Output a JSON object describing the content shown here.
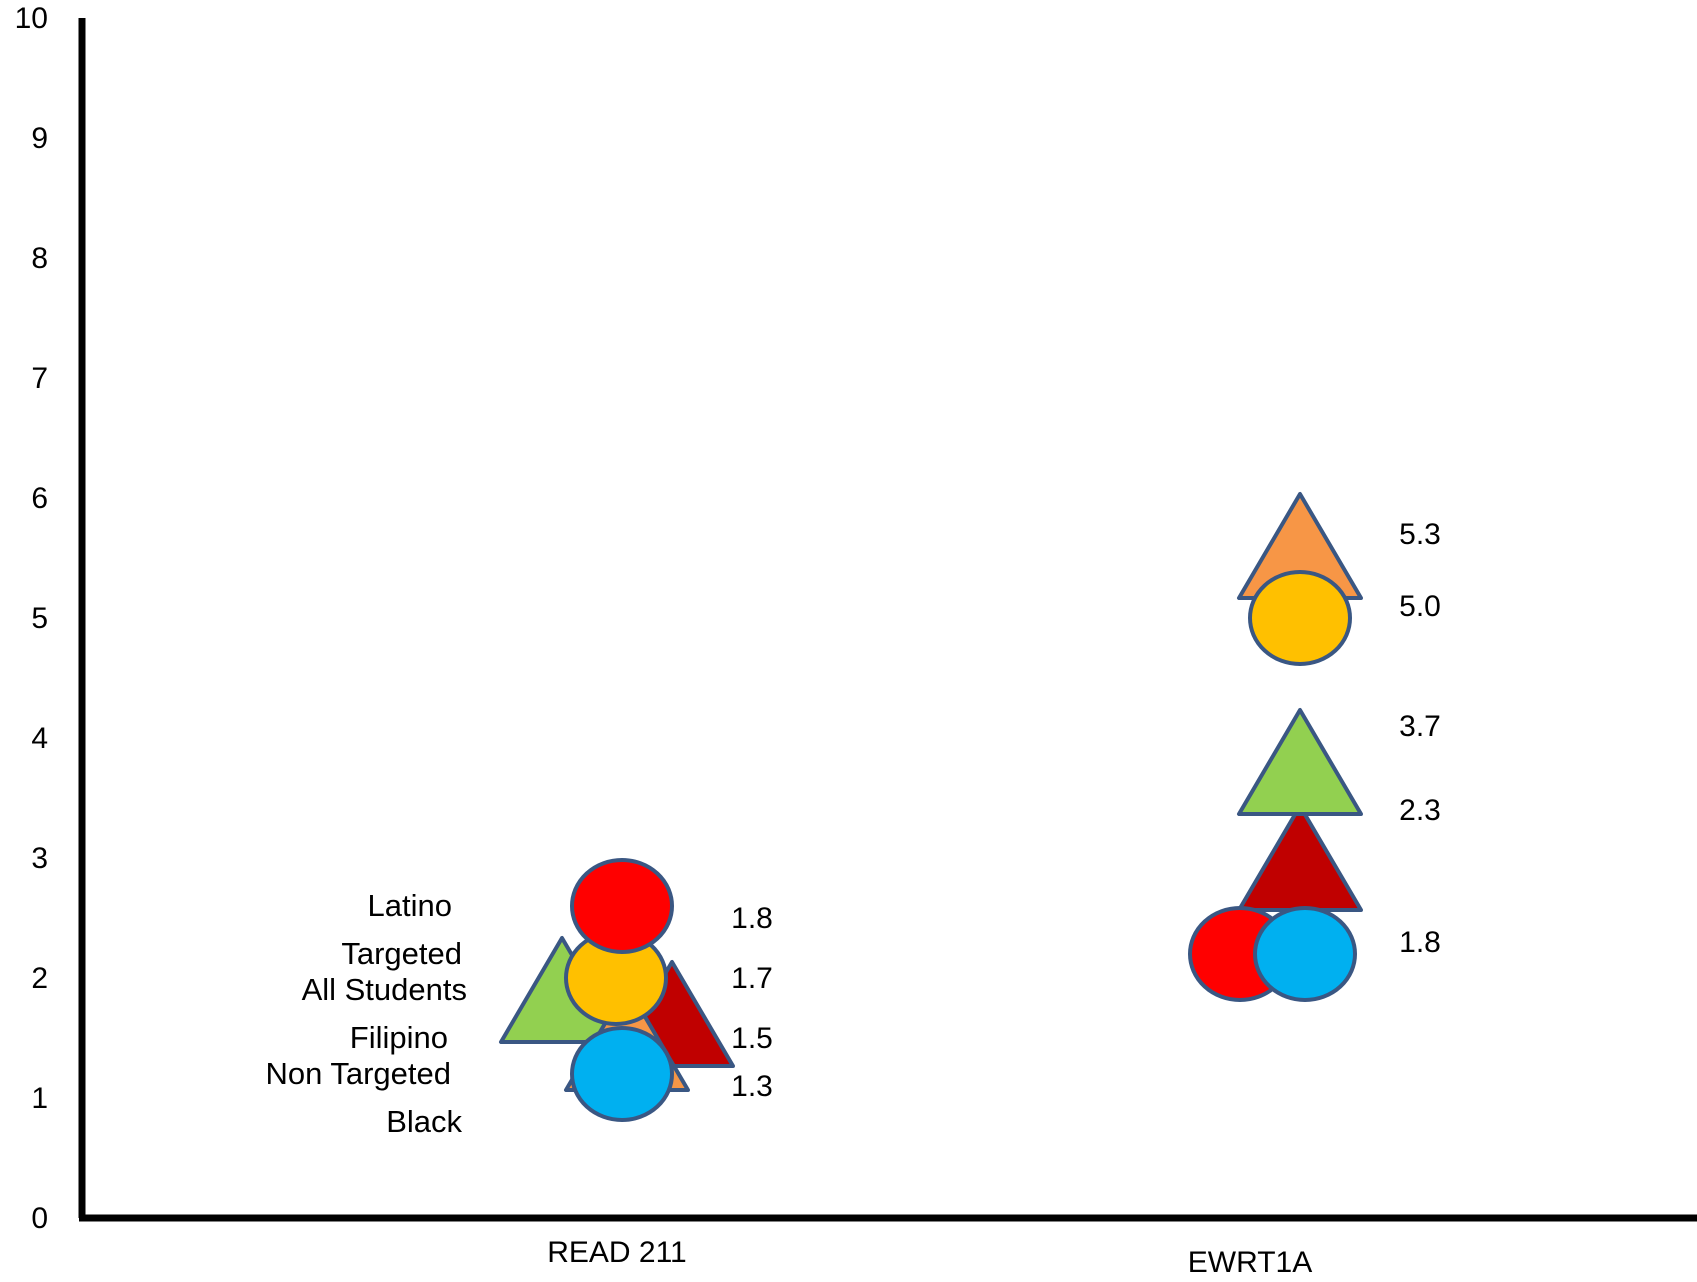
{
  "chart_data": {
    "type": "scatter",
    "categories": [
      "READ 211",
      "EWRT1A"
    ],
    "ylim": [
      0,
      10
    ],
    "yticks": [
      "0",
      "1",
      "2",
      "3",
      "4",
      "5",
      "6",
      "7",
      "8",
      "9",
      "10"
    ],
    "grid": false,
    "legend": "none",
    "marker_outline": "#3A5783",
    "series": [
      {
        "name": "Latino",
        "marker": "circle",
        "color": "#FF0000",
        "values": [
          2.6,
          2.2
        ]
      },
      {
        "name": "Targeted",
        "marker": "triangle",
        "color": "#C00000",
        "values": [
          1.7,
          3.0
        ]
      },
      {
        "name": "All Students",
        "marker": "circle",
        "color": "#FFC000",
        "values": [
          2.0,
          5.0
        ]
      },
      {
        "name": "Filipino",
        "marker": "triangle",
        "color": "#92D050",
        "values": [
          1.9,
          3.8
        ]
      },
      {
        "name": "Non Targeted",
        "marker": "triangle",
        "color": "#F79646",
        "values": [
          1.5,
          5.6
        ]
      },
      {
        "name": "Black",
        "marker": "circle",
        "color": "#00B0F0",
        "values": [
          1.2,
          2.2
        ]
      }
    ],
    "group_labels": [
      "Latino",
      "Targeted",
      "All Students",
      "Filipino",
      "Non Targeted",
      "Black"
    ],
    "data_labels": [
      {
        "category": "READ 211",
        "text": "1.8",
        "y": 2.5
      },
      {
        "category": "READ 211",
        "text": "1.7",
        "y": 2.0
      },
      {
        "category": "READ 211",
        "text": "1.5",
        "y": 1.5
      },
      {
        "category": "READ 211",
        "text": "1.3",
        "y": 1.1
      },
      {
        "category": "EWRT1A",
        "text": "5.3",
        "y": 5.7
      },
      {
        "category": "EWRT1A",
        "text": "5.0",
        "y": 5.1
      },
      {
        "category": "EWRT1A",
        "text": "3.7",
        "y": 4.1
      },
      {
        "category": "EWRT1A",
        "text": "2.3",
        "y": 3.4
      },
      {
        "category": "EWRT1A",
        "text": "1.8",
        "y": 2.3
      }
    ]
  }
}
